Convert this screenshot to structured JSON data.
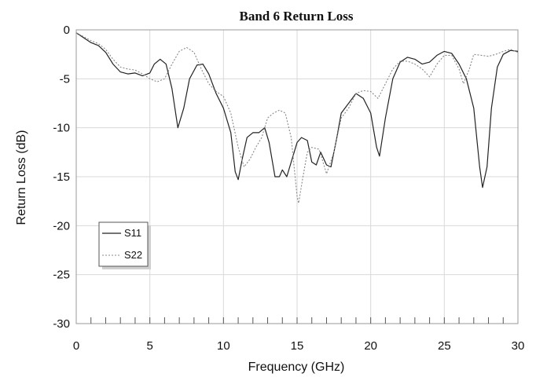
{
  "chart_data": {
    "type": "line",
    "title": "Band 6 Return Loss",
    "xlabel": "Frequency (GHz)",
    "ylabel": "Return Loss (dB)",
    "xlim": [
      0,
      30
    ],
    "ylim": [
      -30,
      0
    ],
    "xticks": [
      0,
      5,
      10,
      15,
      20,
      25,
      30
    ],
    "yticks": [
      0,
      -5,
      -10,
      -15,
      -20,
      -25,
      -30
    ],
    "grid": true,
    "legend_position": "lower-left",
    "colors": {
      "s11": "#222222",
      "s22": "#888888",
      "grid": "#d9d9d9"
    },
    "series": [
      {
        "name": "S11",
        "style": "solid",
        "points": [
          [
            0,
            -0.3
          ],
          [
            0.5,
            -0.8
          ],
          [
            1,
            -1.3
          ],
          [
            1.5,
            -1.6
          ],
          [
            2,
            -2.3
          ],
          [
            2.5,
            -3.5
          ],
          [
            3,
            -4.3
          ],
          [
            3.5,
            -4.5
          ],
          [
            4,
            -4.4
          ],
          [
            4.5,
            -4.7
          ],
          [
            5,
            -4.4
          ],
          [
            5.3,
            -3.5
          ],
          [
            5.7,
            -3.0
          ],
          [
            6.1,
            -3.5
          ],
          [
            6.5,
            -6.0
          ],
          [
            6.9,
            -10.0
          ],
          [
            7.3,
            -8.0
          ],
          [
            7.7,
            -5.0
          ],
          [
            8.2,
            -3.6
          ],
          [
            8.6,
            -3.5
          ],
          [
            9.0,
            -4.5
          ],
          [
            9.5,
            -6.5
          ],
          [
            10,
            -8.0
          ],
          [
            10.5,
            -10.5
          ],
          [
            10.8,
            -14.5
          ],
          [
            11.0,
            -15.3
          ],
          [
            11.3,
            -13.0
          ],
          [
            11.6,
            -11.0
          ],
          [
            12.0,
            -10.5
          ],
          [
            12.4,
            -10.5
          ],
          [
            12.8,
            -10.0
          ],
          [
            13.1,
            -11.5
          ],
          [
            13.5,
            -15.0
          ],
          [
            13.8,
            -15.0
          ],
          [
            14.0,
            -14.3
          ],
          [
            14.3,
            -15.0
          ],
          [
            14.7,
            -13.0
          ],
          [
            15.0,
            -11.5
          ],
          [
            15.3,
            -11.0
          ],
          [
            15.7,
            -11.3
          ],
          [
            16.0,
            -13.5
          ],
          [
            16.3,
            -13.8
          ],
          [
            16.6,
            -12.5
          ],
          [
            17.0,
            -13.8
          ],
          [
            17.3,
            -14.0
          ],
          [
            17.7,
            -11.0
          ],
          [
            18.0,
            -8.5
          ],
          [
            18.5,
            -7.5
          ],
          [
            19.0,
            -6.5
          ],
          [
            19.5,
            -7.0
          ],
          [
            20.0,
            -8.5
          ],
          [
            20.4,
            -12.0
          ],
          [
            20.6,
            -12.9
          ],
          [
            21.0,
            -9.0
          ],
          [
            21.5,
            -5.0
          ],
          [
            22.0,
            -3.3
          ],
          [
            22.5,
            -2.8
          ],
          [
            23.0,
            -3.0
          ],
          [
            23.5,
            -3.5
          ],
          [
            24.0,
            -3.3
          ],
          [
            24.5,
            -2.6
          ],
          [
            25.0,
            -2.2
          ],
          [
            25.5,
            -2.4
          ],
          [
            26.0,
            -3.5
          ],
          [
            26.5,
            -5.0
          ],
          [
            27.0,
            -8.0
          ],
          [
            27.4,
            -14.0
          ],
          [
            27.6,
            -16.1
          ],
          [
            27.9,
            -14.0
          ],
          [
            28.2,
            -8.0
          ],
          [
            28.6,
            -3.8
          ],
          [
            29.0,
            -2.5
          ],
          [
            29.5,
            -2.1
          ],
          [
            30,
            -2.2
          ]
        ]
      },
      {
        "name": "S22",
        "style": "dotted",
        "points": [
          [
            0,
            -0.3
          ],
          [
            0.5,
            -0.7
          ],
          [
            1,
            -1.1
          ],
          [
            1.5,
            -1.4
          ],
          [
            2,
            -2.0
          ],
          [
            2.5,
            -3.0
          ],
          [
            3,
            -3.8
          ],
          [
            3.5,
            -4.0
          ],
          [
            4,
            -4.1
          ],
          [
            4.5,
            -4.5
          ],
          [
            5,
            -5.0
          ],
          [
            5.5,
            -5.3
          ],
          [
            6.0,
            -5.0
          ],
          [
            6.5,
            -3.5
          ],
          [
            7.0,
            -2.2
          ],
          [
            7.5,
            -1.8
          ],
          [
            8.0,
            -2.3
          ],
          [
            8.5,
            -4.0
          ],
          [
            9.0,
            -5.5
          ],
          [
            9.5,
            -6.3
          ],
          [
            10,
            -6.8
          ],
          [
            10.5,
            -8.5
          ],
          [
            11.0,
            -12.0
          ],
          [
            11.4,
            -14.0
          ],
          [
            11.8,
            -13.2
          ],
          [
            12.2,
            -12.0
          ],
          [
            12.6,
            -11.0
          ],
          [
            13.0,
            -9.0
          ],
          [
            13.4,
            -8.5
          ],
          [
            13.8,
            -8.2
          ],
          [
            14.2,
            -8.5
          ],
          [
            14.6,
            -11.0
          ],
          [
            15.0,
            -17.0
          ],
          [
            15.1,
            -17.7
          ],
          [
            15.4,
            -15.0
          ],
          [
            15.7,
            -12.5
          ],
          [
            16.0,
            -12.0
          ],
          [
            16.5,
            -12.2
          ],
          [
            17.0,
            -14.7
          ],
          [
            17.5,
            -12.5
          ],
          [
            18.0,
            -9.0
          ],
          [
            18.5,
            -8.0
          ],
          [
            19.0,
            -6.5
          ],
          [
            19.5,
            -6.2
          ],
          [
            20.0,
            -6.3
          ],
          [
            20.5,
            -7.0
          ],
          [
            21.0,
            -5.5
          ],
          [
            21.5,
            -4.0
          ],
          [
            22.0,
            -3.2
          ],
          [
            22.5,
            -3.2
          ],
          [
            23.0,
            -3.5
          ],
          [
            23.5,
            -4.0
          ],
          [
            24.0,
            -4.8
          ],
          [
            24.5,
            -3.5
          ],
          [
            25.0,
            -2.6
          ],
          [
            25.5,
            -2.6
          ],
          [
            26.0,
            -4.0
          ],
          [
            26.3,
            -5.5
          ],
          [
            26.7,
            -4.0
          ],
          [
            27.0,
            -2.5
          ],
          [
            27.5,
            -2.6
          ],
          [
            28.0,
            -2.7
          ],
          [
            28.5,
            -2.5
          ],
          [
            29.0,
            -2.2
          ],
          [
            29.5,
            -2.0
          ],
          [
            30,
            -2.3
          ]
        ]
      }
    ]
  }
}
